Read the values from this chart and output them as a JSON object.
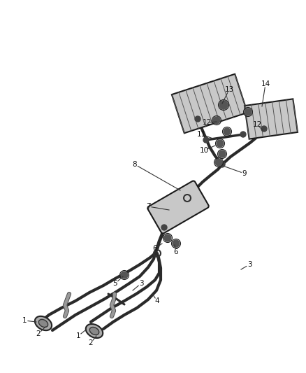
{
  "bg_color": "#ffffff",
  "line_color": "#1a1a1a",
  "label_color": "#111111",
  "figsize": [
    4.38,
    5.33
  ],
  "dpi": 100,
  "pipe_lw": 2.0,
  "pipe_color": "#2a2a2a",
  "part_color": "#888888",
  "part_edge": "#222222",
  "hatch_color": "#444444"
}
